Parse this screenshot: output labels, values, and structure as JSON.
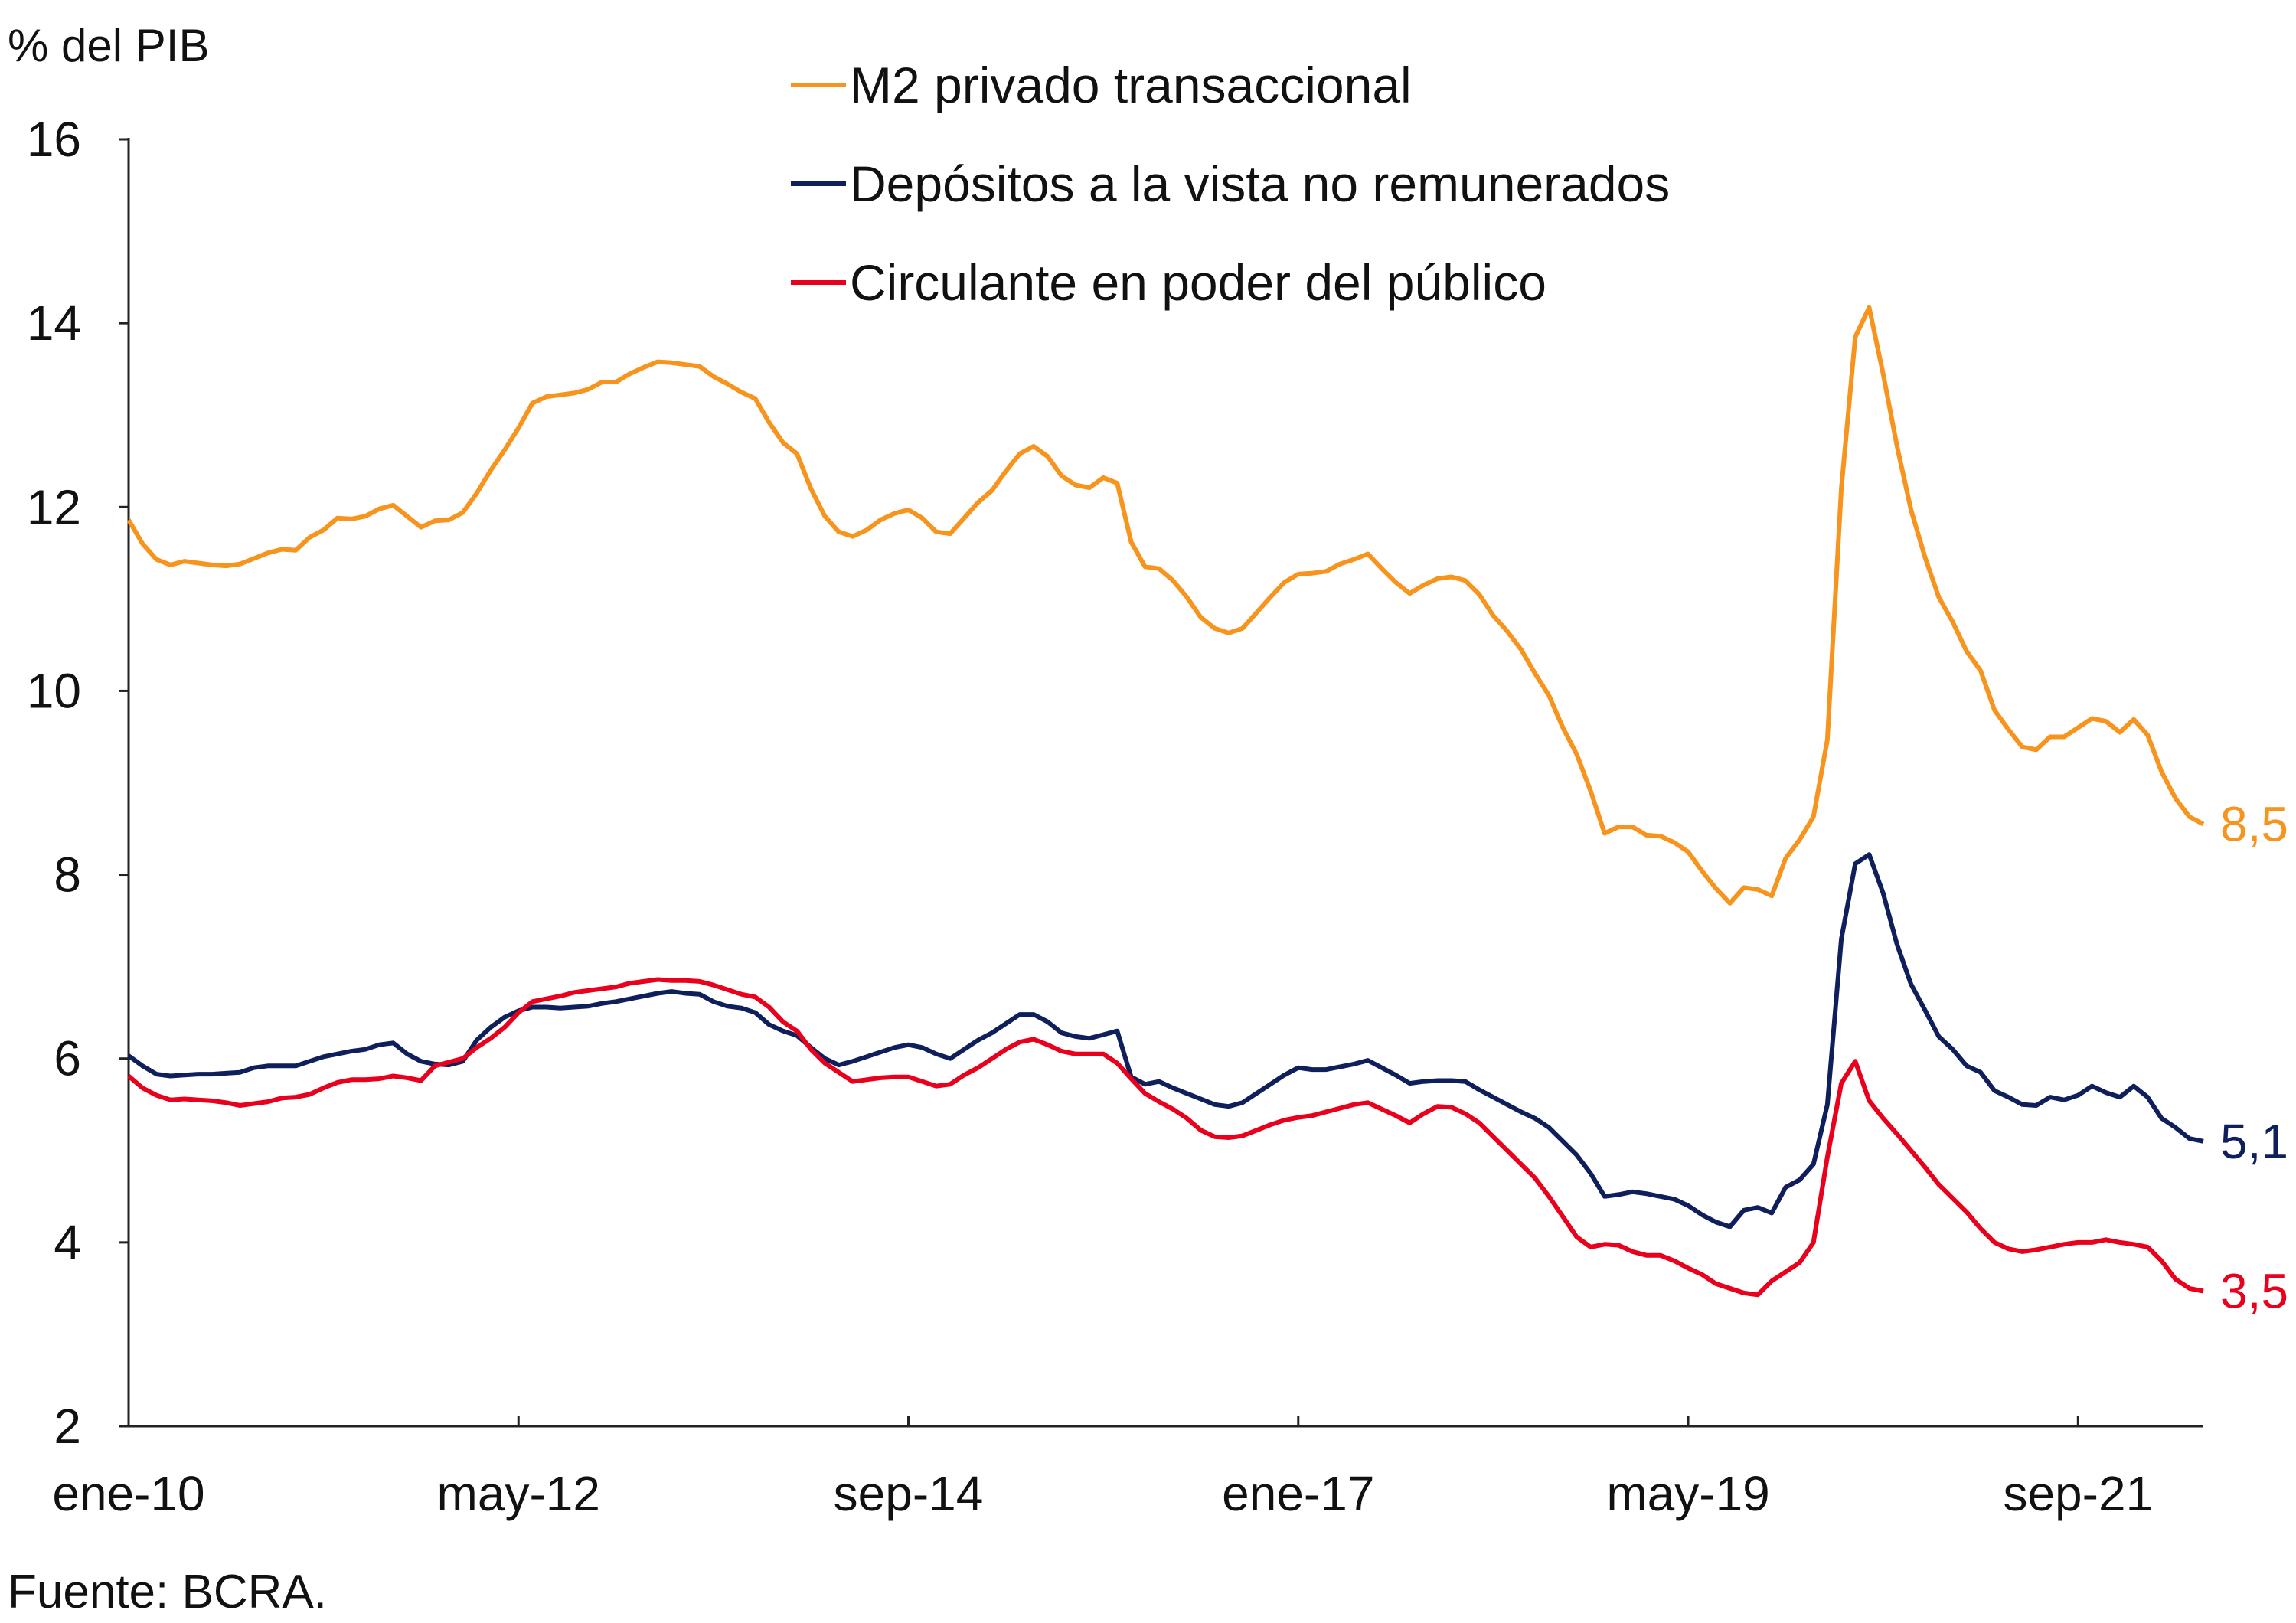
{
  "chart_data": {
    "type": "line",
    "ylabel": "% del PIB",
    "ylim": [
      2,
      16
    ],
    "yticks": [
      2,
      4,
      6,
      8,
      10,
      12,
      14,
      16
    ],
    "x_start": "ene-10",
    "x_end": "jun-22",
    "x_frequency": "monthly",
    "xticks": [
      {
        "month_index": 0,
        "label": "ene-10"
      },
      {
        "month_index": 28,
        "label": "may-12"
      },
      {
        "month_index": 56,
        "label": "sep-14"
      },
      {
        "month_index": 84,
        "label": "ene-17"
      },
      {
        "month_index": 112,
        "label": "may-19"
      },
      {
        "month_index": 140,
        "label": "sep-21"
      }
    ],
    "grid": false,
    "legend_position": "top",
    "source": "Fuente: BCRA.",
    "series": [
      {
        "name": "M2 privado transaccional",
        "color": "#F7941D",
        "end_label": "8,5",
        "values": [
          11.86,
          11.6,
          11.43,
          11.37,
          11.41,
          11.39,
          11.37,
          11.36,
          11.38,
          11.44,
          11.5,
          11.54,
          11.53,
          11.67,
          11.75,
          11.88,
          11.87,
          11.9,
          11.98,
          12.02,
          11.9,
          11.78,
          11.85,
          11.86,
          11.94,
          12.15,
          12.4,
          12.62,
          12.86,
          13.13,
          13.2,
          13.22,
          13.24,
          13.28,
          13.36,
          13.36,
          13.45,
          13.52,
          13.58,
          13.57,
          13.55,
          13.53,
          13.42,
          13.34,
          13.25,
          13.18,
          12.92,
          12.7,
          12.58,
          12.2,
          11.9,
          11.73,
          11.68,
          11.75,
          11.86,
          11.93,
          11.97,
          11.88,
          11.73,
          11.71,
          11.88,
          12.05,
          12.18,
          12.39,
          12.58,
          12.66,
          12.55,
          12.34,
          12.24,
          12.21,
          12.32,
          12.26,
          11.62,
          11.35,
          11.33,
          11.2,
          11.02,
          10.8,
          10.68,
          10.63,
          10.68,
          10.85,
          11.02,
          11.18,
          11.27,
          11.28,
          11.3,
          11.38,
          11.43,
          11.49,
          11.33,
          11.18,
          11.06,
          11.15,
          11.22,
          11.24,
          11.2,
          11.05,
          10.82,
          10.65,
          10.45,
          10.19,
          9.95,
          9.6,
          9.31,
          8.91,
          8.45,
          8.52,
          8.52,
          8.43,
          8.42,
          8.35,
          8.25,
          8.04,
          7.85,
          7.69,
          7.86,
          7.84,
          7.77,
          8.18,
          8.38,
          8.63,
          9.47,
          12.2,
          13.85,
          14.17,
          13.45,
          12.66,
          11.97,
          11.46,
          11.02,
          10.75,
          10.43,
          10.22,
          9.79,
          9.58,
          9.39,
          9.36,
          9.5,
          9.5,
          9.6,
          9.7,
          9.67,
          9.55,
          9.69,
          9.52,
          9.12,
          8.83,
          8.63,
          8.55
        ]
      },
      {
        "name": "Depósitos a la vista no remunerados",
        "color": "#0E1F5B",
        "end_label": "5,1",
        "values": [
          6.03,
          5.92,
          5.83,
          5.81,
          5.82,
          5.83,
          5.83,
          5.84,
          5.85,
          5.9,
          5.92,
          5.92,
          5.92,
          5.97,
          6.02,
          6.05,
          6.08,
          6.1,
          6.15,
          6.17,
          6.05,
          5.97,
          5.94,
          5.93,
          5.97,
          6.2,
          6.34,
          6.45,
          6.52,
          6.56,
          6.56,
          6.55,
          6.56,
          6.57,
          6.6,
          6.62,
          6.65,
          6.68,
          6.71,
          6.73,
          6.71,
          6.7,
          6.62,
          6.57,
          6.55,
          6.5,
          6.37,
          6.3,
          6.25,
          6.12,
          6.0,
          5.93,
          5.97,
          6.02,
          6.07,
          6.12,
          6.15,
          6.12,
          6.05,
          6.0,
          6.1,
          6.2,
          6.28,
          6.38,
          6.48,
          6.48,
          6.4,
          6.28,
          6.24,
          6.22,
          6.26,
          6.3,
          5.8,
          5.72,
          5.75,
          5.68,
          5.62,
          5.56,
          5.5,
          5.48,
          5.52,
          5.62,
          5.72,
          5.82,
          5.9,
          5.88,
          5.88,
          5.91,
          5.94,
          5.98,
          5.9,
          5.82,
          5.73,
          5.75,
          5.76,
          5.76,
          5.75,
          5.66,
          5.58,
          5.5,
          5.42,
          5.35,
          5.25,
          5.1,
          4.95,
          4.75,
          4.5,
          4.52,
          4.55,
          4.53,
          4.5,
          4.47,
          4.4,
          4.3,
          4.22,
          4.17,
          4.35,
          4.38,
          4.32,
          4.6,
          4.68,
          4.85,
          5.5,
          7.3,
          8.12,
          8.22,
          7.8,
          7.24,
          6.81,
          6.53,
          6.24,
          6.1,
          5.92,
          5.85,
          5.65,
          5.58,
          5.5,
          5.49,
          5.58,
          5.55,
          5.6,
          5.7,
          5.63,
          5.58,
          5.7,
          5.58,
          5.35,
          5.25,
          5.13,
          5.1
        ]
      },
      {
        "name": "Circulante en poder del público",
        "color": "#E8001C",
        "end_label": "3,5",
        "values": [
          5.81,
          5.68,
          5.6,
          5.55,
          5.56,
          5.55,
          5.54,
          5.52,
          5.49,
          5.51,
          5.53,
          5.57,
          5.58,
          5.61,
          5.68,
          5.74,
          5.77,
          5.77,
          5.78,
          5.81,
          5.79,
          5.76,
          5.92,
          5.96,
          6.0,
          6.12,
          6.22,
          6.34,
          6.5,
          6.62,
          6.65,
          6.68,
          6.72,
          6.74,
          6.76,
          6.78,
          6.82,
          6.84,
          6.86,
          6.85,
          6.85,
          6.84,
          6.8,
          6.75,
          6.7,
          6.67,
          6.56,
          6.4,
          6.3,
          6.1,
          5.95,
          5.85,
          5.75,
          5.77,
          5.79,
          5.8,
          5.8,
          5.75,
          5.7,
          5.72,
          5.82,
          5.9,
          6.0,
          6.1,
          6.18,
          6.21,
          6.15,
          6.08,
          6.05,
          6.05,
          6.05,
          5.95,
          5.78,
          5.62,
          5.53,
          5.45,
          5.35,
          5.22,
          5.15,
          5.14,
          5.16,
          5.22,
          5.28,
          5.33,
          5.36,
          5.38,
          5.42,
          5.46,
          5.5,
          5.52,
          5.45,
          5.38,
          5.3,
          5.4,
          5.48,
          5.47,
          5.4,
          5.3,
          5.15,
          5.0,
          4.85,
          4.7,
          4.5,
          4.28,
          4.06,
          3.95,
          3.98,
          3.97,
          3.9,
          3.86,
          3.86,
          3.8,
          3.72,
          3.65,
          3.55,
          3.5,
          3.45,
          3.43,
          3.58,
          3.68,
          3.78,
          4.0,
          4.93,
          5.73,
          5.97,
          5.54,
          5.35,
          5.18,
          5.0,
          4.82,
          4.63,
          4.48,
          4.33,
          4.15,
          4.0,
          3.93,
          3.9,
          3.92,
          3.95,
          3.98,
          4.0,
          4.0,
          4.03,
          4.0,
          3.98,
          3.95,
          3.8,
          3.6,
          3.5,
          3.47
        ]
      }
    ]
  }
}
